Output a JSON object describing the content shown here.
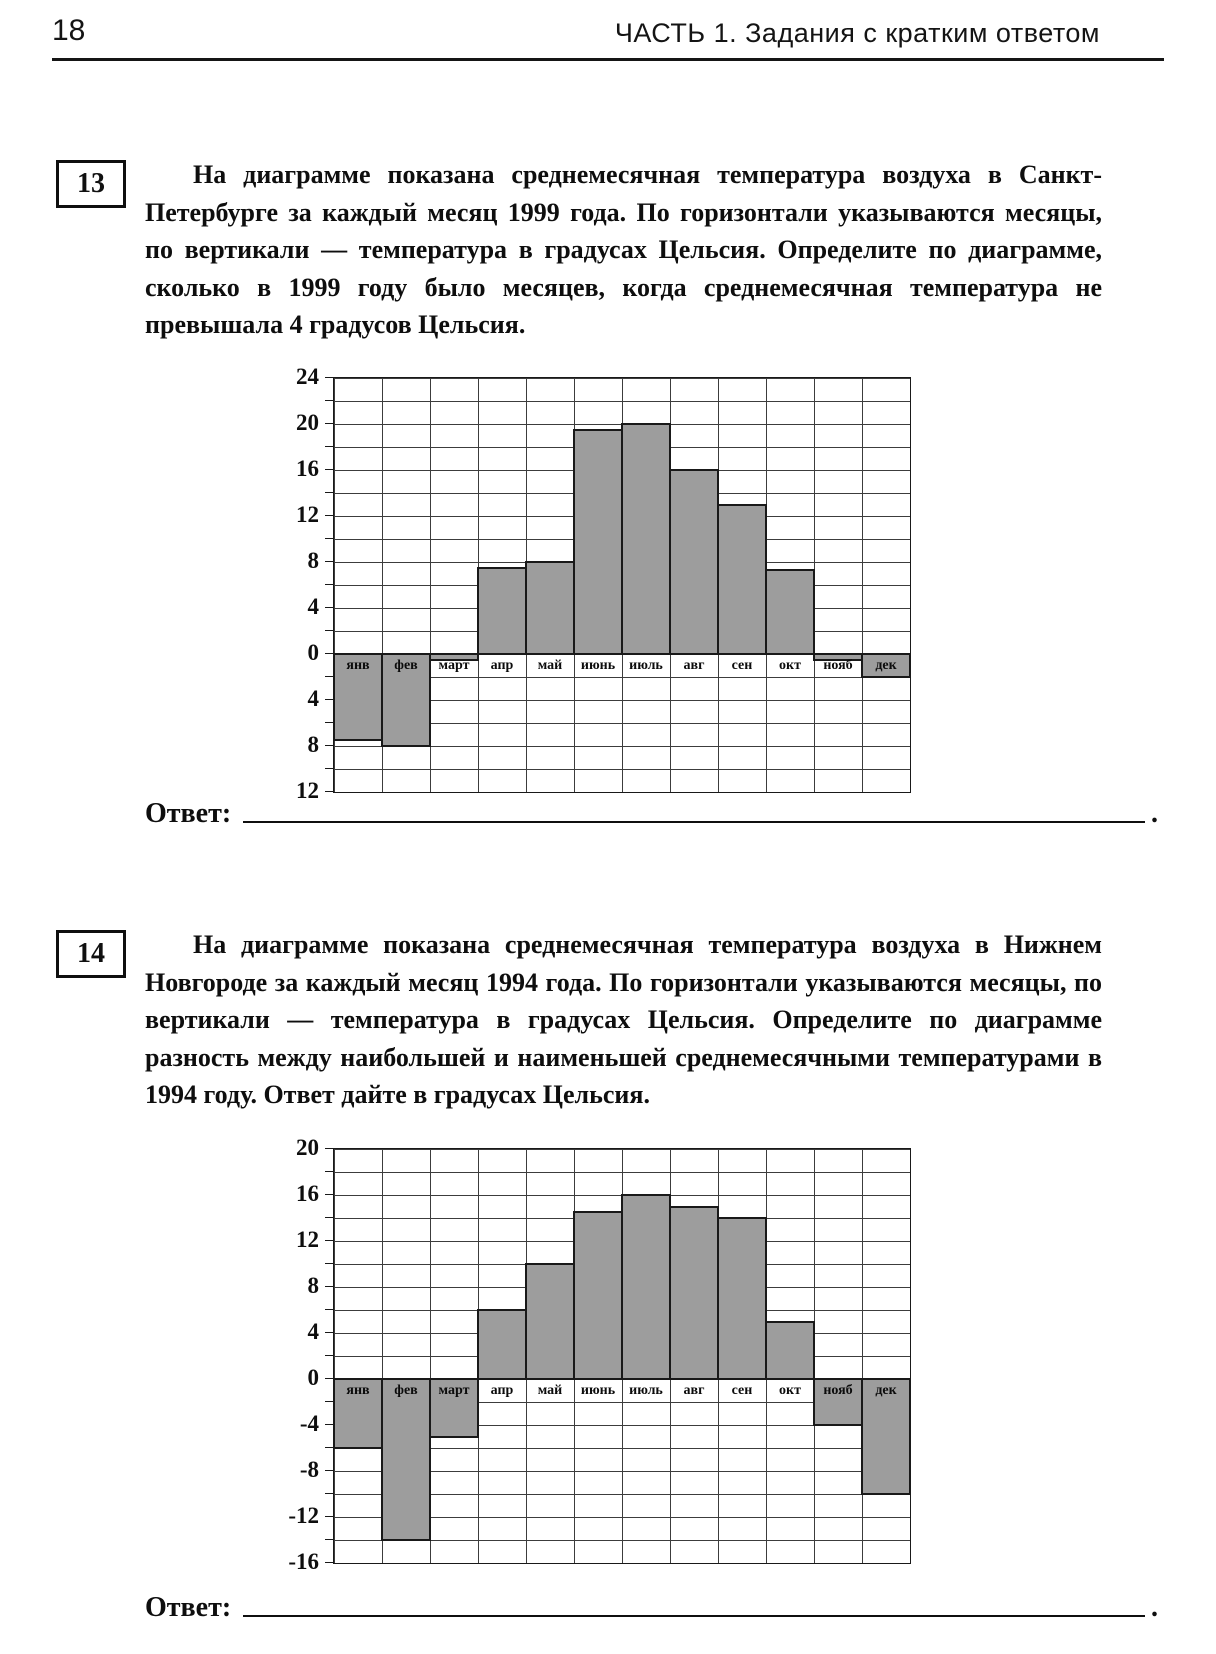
{
  "page": {
    "number": "18",
    "part_title": "ЧАСТЬ 1. Задания с кратким ответом"
  },
  "problem13": {
    "number": "13",
    "text": "На диаграмме показана среднемесячная температура воздуха в Санкт-Петербурге за каждый месяц 1999 года. По горизонтали указываются месяцы, по вертикали — температура в градусах Цельсия. Определите по диаграмме, сколько в 1999 году было месяцев, когда среднемесячная температура не превышала 4 градусов Цельсия.",
    "answer_label": "Ответ:",
    "answer_suffix": "."
  },
  "problem14": {
    "number": "14",
    "text": "На диаграмме показана среднемесячная температура воздуха в Нижнем Новгороде за каждый месяц 1994 года. По горизонтали указываются месяцы, по вертикали — температура в градусах Цельсия. Определите по диаграмме разность между наибольшей и наименьшей среднемесячными температурами в 1994 году. Ответ дайте в градусах Цельсия.",
    "answer_label": "Ответ:",
    "answer_suffix": "."
  },
  "chart_data": [
    {
      "type": "bar",
      "title": "",
      "xlabel": "",
      "ylabel": "",
      "categories": [
        "янв",
        "фев",
        "март",
        "апр",
        "май",
        "июнь",
        "июль",
        "авг",
        "сен",
        "окт",
        "нояб",
        "дек"
      ],
      "values": [
        -7.5,
        -8,
        -0.5,
        7.5,
        8,
        19.5,
        20,
        16,
        13,
        7.3,
        -0.5,
        -2
      ],
      "ylim": [
        -12,
        24
      ],
      "ytick_step": 4,
      "grid_step": 2,
      "ytick_labels": [
        "24",
        "20",
        "16",
        "12",
        "8",
        "4",
        "0",
        "4",
        "8",
        "12"
      ],
      "grid": true,
      "legend": "none",
      "bar_color": "#9d9d9d",
      "bar_border_color": "#191919"
    },
    {
      "type": "bar",
      "title": "",
      "xlabel": "",
      "ylabel": "",
      "categories": [
        "янв",
        "фев",
        "март",
        "апр",
        "май",
        "июнь",
        "июль",
        "авг",
        "сен",
        "окт",
        "нояб",
        "дек"
      ],
      "values": [
        -6,
        -14,
        -5,
        6,
        10,
        14.5,
        16,
        15,
        14,
        5,
        -4,
        -10
      ],
      "ylim": [
        -16,
        20
      ],
      "ytick_step": 4,
      "grid_step": 2,
      "ytick_labels": [
        "20",
        "16",
        "12",
        "8",
        "4",
        "0",
        "-4",
        "-8",
        "-12",
        "-16"
      ],
      "grid": true,
      "legend": "none",
      "bar_color": "#9d9d9d",
      "bar_border_color": "#191919"
    }
  ]
}
